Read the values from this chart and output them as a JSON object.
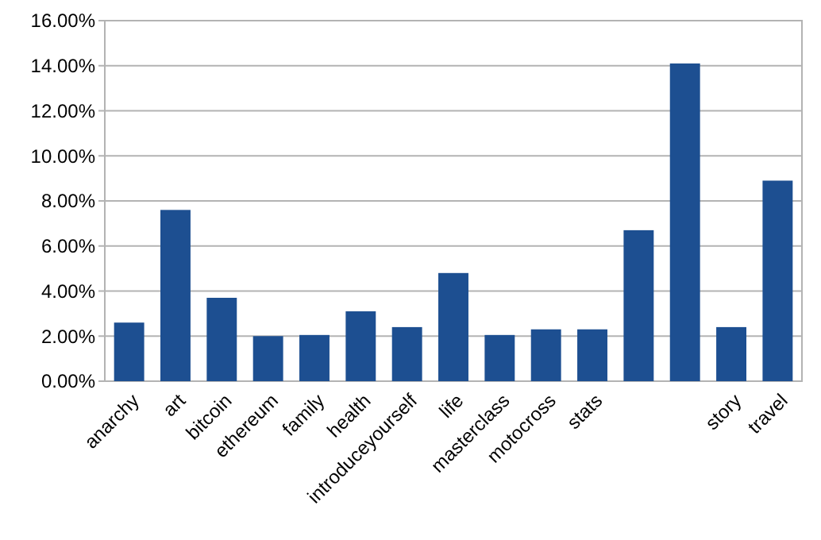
{
  "chart_data": {
    "type": "bar",
    "categories": [
      "anarchy",
      "art",
      "bitcoin",
      "ethereum",
      "family",
      "health",
      "introduceyourself",
      "life",
      "masterclass",
      "motocross",
      "stats",
      null,
      null,
      "story",
      "travel"
    ],
    "values": [
      2.6,
      7.6,
      3.7,
      2.0,
      2.05,
      3.1,
      2.4,
      4.8,
      2.05,
      2.3,
      2.3,
      6.7,
      14.1,
      2.4,
      8.9
    ],
    "color": "#1d4f91",
    "ylim": [
      0,
      16
    ],
    "yticks": [
      {
        "value": 0,
        "label": "0.00%"
      },
      {
        "value": 2,
        "label": "2.00%"
      },
      {
        "value": 4,
        "label": "4.00%"
      },
      {
        "value": 6,
        "label": "6.00%"
      },
      {
        "value": 8,
        "label": "8.00%"
      },
      {
        "value": 10,
        "label": "10.00%"
      },
      {
        "value": 12,
        "label": "12.00%"
      },
      {
        "value": 14,
        "label": "14.00%"
      },
      {
        "value": 16,
        "label": "16.00%"
      }
    ],
    "grid": "y"
  }
}
